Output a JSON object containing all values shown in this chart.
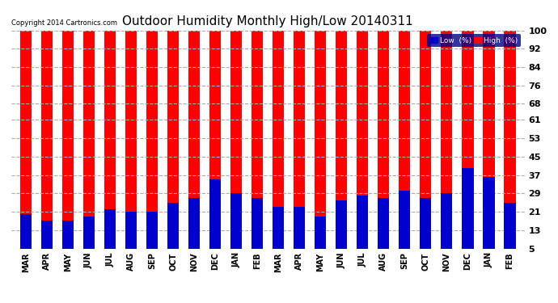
{
  "title": "Outdoor Humidity Monthly High/Low 20140311",
  "copyright": "Copyright 2014 Cartronics.com",
  "categories": [
    "MAR",
    "APR",
    "MAY",
    "JUN",
    "JUL",
    "AUG",
    "SEP",
    "OCT",
    "NOV",
    "DEC",
    "JAN",
    "FEB",
    "MAR",
    "APR",
    "MAY",
    "JUN",
    "JUL",
    "AUG",
    "SEP",
    "OCT",
    "NOV",
    "DEC",
    "JAN",
    "FEB"
  ],
  "high_values": [
    100,
    100,
    100,
    100,
    100,
    100,
    100,
    100,
    100,
    100,
    100,
    100,
    100,
    100,
    100,
    100,
    100,
    100,
    100,
    100,
    100,
    100,
    100,
    100
  ],
  "low_values": [
    20,
    17,
    17,
    19,
    22,
    21,
    21,
    25,
    27,
    35,
    29,
    27,
    23,
    23,
    19,
    26,
    28,
    27,
    30,
    27,
    29,
    40,
    36,
    25
  ],
  "high_color": "#ff0000",
  "low_color": "#0000cc",
  "bg_color": "#ffffff",
  "plot_bg_color": "#ffffff",
  "title_fontsize": 11,
  "yticks": [
    5,
    13,
    21,
    29,
    37,
    45,
    53,
    61,
    68,
    76,
    84,
    92,
    100
  ],
  "ymin": 5,
  "ymax": 100,
  "bar_width": 0.55,
  "grid_color": "#aaaaaa",
  "legend_low_label": "Low  (%)",
  "legend_high_label": "High  (%)"
}
